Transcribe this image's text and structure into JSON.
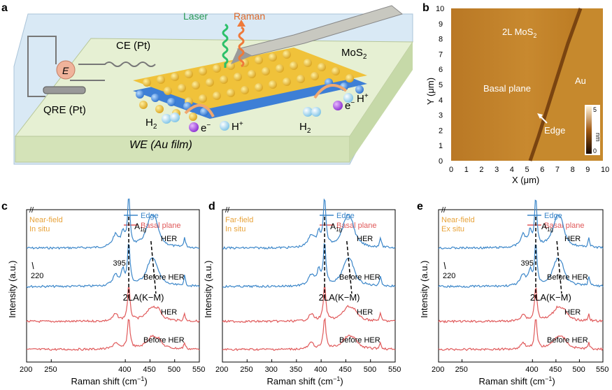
{
  "panel_labels": {
    "a": "a",
    "b": "b",
    "c": "c",
    "d": "d",
    "e": "e"
  },
  "schematic": {
    "laser": "Laser",
    "raman": "Raman",
    "ce": "CE (Pt)",
    "e_symbol": "E",
    "qre": "QRE (Pt)",
    "mos2": "MoS",
    "mos2_sub": "2",
    "hplus_right": "H",
    "hplus_sup": "+",
    "h2_left": "H",
    "h2_sub": "2",
    "eminus": "e",
    "eminus_sup": "−",
    "hplus_bottom": "H",
    "h2_right": "H",
    "eminus_right": "e",
    "we": "WE (Au film)"
  },
  "afm": {
    "title_2l": "2L MoS",
    "title_2l_sub": "2",
    "basal": "Basal plane",
    "au": "Au",
    "edge": "Edge",
    "ylabel": "Y (μm)",
    "xlabel": "X (μm)",
    "unit": "nm",
    "cbar_max": "5",
    "cbar_min": "0",
    "ticks": [
      "0",
      "1",
      "2",
      "3",
      "4",
      "5",
      "6",
      "7",
      "8",
      "9",
      "10"
    ]
  },
  "chart_data": [
    {
      "panel": "c",
      "type": "line",
      "title_lines": [
        "Near-field",
        "In situ"
      ],
      "legend": [
        "Edge",
        "Basal plane"
      ],
      "xlabel": "Raman shift (cm",
      "xlabel_sup": "−1",
      "xlabel_end": ")",
      "ylabel": "Intensity (a.u.)",
      "xticks": [
        "200",
        "250",
        "400",
        "450",
        "500",
        "550"
      ],
      "series": [
        {
          "name": "Edge HER",
          "label": "HER",
          "color": "#3b86c9"
        },
        {
          "name": "Edge Before HER",
          "label": "Before HER",
          "color": "#3b86c9"
        },
        {
          "name": "Basal HER",
          "label": "HER",
          "color": "#e0595a"
        },
        {
          "name": "Basal Before HER",
          "label": "Before HER",
          "color": "#e0595a"
        }
      ],
      "peaks": {
        "a1g": "A",
        "a1g_sub": "1g",
        "p395": "395",
        "p220": "220",
        "two_la": "2LA(K−M)"
      }
    },
    {
      "panel": "d",
      "type": "line",
      "title_lines": [
        "Far-field",
        "In situ"
      ],
      "legend": [
        "Edge",
        "Basal plane"
      ],
      "xlabel": "Raman shift (cm",
      "xlabel_sup": "−1",
      "xlabel_end": ")",
      "ylabel": "Intensity (a.u.)",
      "xticks": [
        "200",
        "250",
        "300",
        "350",
        "400",
        "450",
        "500",
        "550"
      ],
      "series": [
        {
          "name": "Edge HER",
          "label": "HER",
          "color": "#3b86c9"
        },
        {
          "name": "Edge Before HER",
          "label": "Before HER",
          "color": "#3b86c9"
        },
        {
          "name": "Basal HER",
          "label": "HER",
          "color": "#e0595a"
        },
        {
          "name": "Basal Before HER",
          "label": "Before HER",
          "color": "#e0595a"
        }
      ],
      "peaks": {
        "a1g": "A",
        "a1g_sub": "1g",
        "two_la": "2LA(K−M)"
      }
    },
    {
      "panel": "e",
      "type": "line",
      "title_lines": [
        "Near-field",
        "Ex situ"
      ],
      "legend": [
        "Edge",
        "Basal plane"
      ],
      "xlabel": "Raman shift (cm",
      "xlabel_sup": "−1",
      "xlabel_end": ")",
      "ylabel": "Intensity (a.u.)",
      "xticks": [
        "200",
        "250",
        "400",
        "450",
        "500",
        "550"
      ],
      "series": [
        {
          "name": "Edge HER",
          "label": "HER",
          "color": "#3b86c9"
        },
        {
          "name": "Edge Before HER",
          "label": "Before HER",
          "color": "#3b86c9"
        },
        {
          "name": "Basal HER",
          "label": "HER",
          "color": "#e0595a"
        },
        {
          "name": "Basal Before HER",
          "label": "Before HER",
          "color": "#e0595a"
        }
      ],
      "peaks": {
        "a1g": "A",
        "a1g_sub": "1g",
        "p395": "395",
        "p220": "220",
        "two_la": "2LA(K−M)"
      }
    }
  ],
  "colors": {
    "edge": "#3b86c9",
    "basal": "#e0595a",
    "title": "#e8a33a",
    "afm_dark": "#3d1f0a",
    "afm_light": "#c98a2e"
  }
}
